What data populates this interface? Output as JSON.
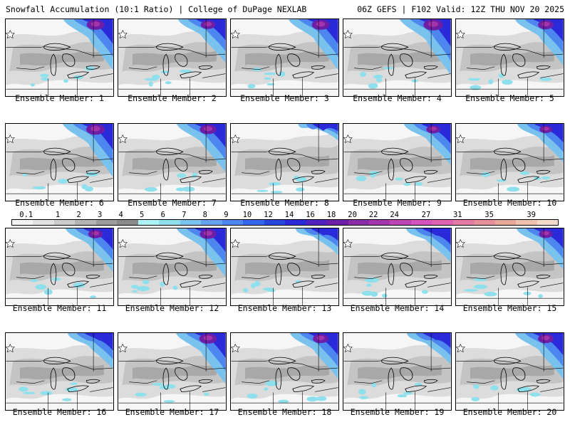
{
  "header": {
    "title": "Snowfall Accumulation (10:1 Ratio) | College of DuPage NEXLAB",
    "run_info": "06Z GEFS | F102 Valid: 12Z THU NOV 20 2025"
  },
  "legend": {
    "labels": [
      "0.1",
      "1",
      "2",
      "3",
      "4",
      "5",
      "6",
      "7",
      "8",
      "9",
      "10",
      "12",
      "14",
      "16",
      "18",
      "20",
      "22",
      "24",
      "27",
      "31",
      "35",
      "39"
    ],
    "colors": [
      "#f4f4f4",
      "#e2e2e2",
      "#cccccc",
      "#b4b4b4",
      "#9c9c9c",
      "#8a8a8a",
      "#aef4f4",
      "#8ee0ec",
      "#7ac2ee",
      "#64a4ee",
      "#4c86ee",
      "#3466ee",
      "#2848dc",
      "#2a2ad8",
      "#5222c0",
      "#6e1ea6",
      "#8a2ca6",
      "#a434ac",
      "#bc44b4",
      "#d254bc",
      "#e064b4",
      "#e47aa8",
      "#e6909c",
      "#e8a898",
      "#eec2ae",
      "#f4dccc"
    ]
  },
  "members": [
    {
      "caption": "Ensemble Member: 1",
      "intensity": 0.9
    },
    {
      "caption": "Ensemble Member: 2",
      "intensity": 0.75
    },
    {
      "caption": "Ensemble Member: 3",
      "intensity": 0.9
    },
    {
      "caption": "Ensemble Member: 4",
      "intensity": 1.0
    },
    {
      "caption": "Ensemble Member: 5",
      "intensity": 0.8
    },
    {
      "caption": "Ensemble Member: 6",
      "intensity": 0.95
    },
    {
      "caption": "Ensemble Member: 7",
      "intensity": 0.85
    },
    {
      "caption": "Ensemble Member: 8",
      "intensity": 0.2
    },
    {
      "caption": "Ensemble Member: 9",
      "intensity": 0.7
    },
    {
      "caption": "Ensemble Member: 10",
      "intensity": 0.65
    },
    {
      "caption": "Ensemble Member: 11",
      "intensity": 0.75
    },
    {
      "caption": "Ensemble Member: 12",
      "intensity": 0.85
    },
    {
      "caption": "Ensemble Member: 13",
      "intensity": 0.4
    },
    {
      "caption": "Ensemble Member: 14",
      "intensity": 0.55
    },
    {
      "caption": "Ensemble Member: 15",
      "intensity": 0.7
    },
    {
      "caption": "Ensemble Member: 16",
      "intensity": 0.6
    },
    {
      "caption": "Ensemble Member: 17",
      "intensity": 0.9
    },
    {
      "caption": "Ensemble Member: 18",
      "intensity": 0.8
    },
    {
      "caption": "Ensemble Member: 19",
      "intensity": 0.5
    },
    {
      "caption": "Ensemble Member: 20",
      "intensity": 0.8
    }
  ]
}
